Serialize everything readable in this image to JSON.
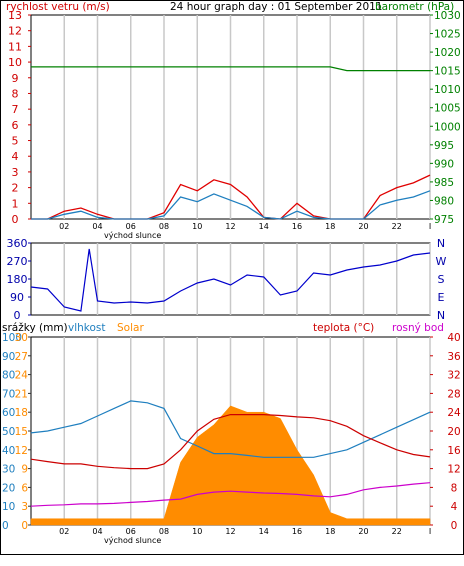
{
  "page": {
    "title": "24 hour graph day : 01 September 2011",
    "sunrise_label": "východ slunce"
  },
  "time_axis": {
    "ticks": [
      "02",
      "04",
      "06",
      "08",
      "10",
      "12",
      "14",
      "16",
      "18",
      "20",
      "22",
      "I"
    ]
  },
  "chart_data": [
    {
      "id": "wind_pressure",
      "type": "line",
      "title": "24 hour graph day : 01 September 2011",
      "left_axis": {
        "label": "rychlost vetru (m/s)",
        "color": "#d00000",
        "ticks": [
          "0",
          "1",
          "2",
          "3",
          "4",
          "5",
          "6",
          "7",
          "8",
          "9",
          "10",
          "11",
          "12",
          "13"
        ],
        "range": [
          0,
          13
        ]
      },
      "right_axis": {
        "label": "barometr (hPa)",
        "color": "#008000",
        "ticks": [
          "975",
          "980",
          "985",
          "990",
          "995",
          "1000",
          "1005",
          "1010",
          "1015",
          "1020",
          "1025",
          "1030"
        ],
        "range": [
          975,
          1030
        ]
      },
      "x": [
        0,
        1,
        2,
        3,
        4,
        5,
        6,
        7,
        8,
        9,
        10,
        11,
        12,
        13,
        14,
        15,
        16,
        17,
        18,
        19,
        20,
        21,
        22,
        23,
        24
      ],
      "series": [
        {
          "axis": "right",
          "color": "#008000",
          "values": [
            1016,
            1016,
            1016,
            1016,
            1016,
            1016,
            1016,
            1016,
            1016,
            1016,
            1016,
            1016,
            1016,
            1016,
            1016,
            1016,
            1016,
            1016,
            1016,
            1015,
            1015,
            1015,
            1015,
            1015,
            1015
          ]
        },
        {
          "axis": "left",
          "color": "#e00000",
          "values": [
            0,
            0,
            0.5,
            0.7,
            0.3,
            0,
            0,
            0,
            0.4,
            2.2,
            1.8,
            2.5,
            2.2,
            1.4,
            0.1,
            0,
            1,
            0.2,
            0,
            0,
            0,
            1.5,
            2,
            2.3,
            2.8
          ]
        },
        {
          "axis": "left",
          "color": "#1f7fbf",
          "values": [
            0,
            0,
            0.3,
            0.5,
            0.1,
            0,
            0,
            0,
            0.2,
            1.4,
            1.1,
            1.6,
            1.2,
            0.8,
            0.1,
            0,
            0.5,
            0.1,
            0,
            0,
            0,
            0.9,
            1.2,
            1.4,
            1.8
          ]
        }
      ]
    },
    {
      "id": "wind_direction",
      "type": "line",
      "left_axis": {
        "ticks": [
          "0",
          "90",
          "180",
          "270",
          "360"
        ],
        "range": [
          0,
          360
        ]
      },
      "right_axis": {
        "ticks": [
          "N",
          "E",
          "S",
          "W",
          "N"
        ]
      },
      "x": [
        0,
        1,
        2,
        3,
        3.5,
        4,
        5,
        6,
        7,
        8,
        9,
        10,
        11,
        12,
        13,
        14,
        15,
        16,
        17,
        18,
        19,
        20,
        21,
        22,
        23,
        24
      ],
      "series": [
        {
          "color": "#0000cc",
          "values": [
            140,
            130,
            40,
            20,
            330,
            70,
            60,
            65,
            60,
            70,
            120,
            160,
            180,
            150,
            200,
            190,
            100,
            120,
            210,
            200,
            225,
            240,
            250,
            270,
            300,
            310
          ]
        }
      ]
    },
    {
      "id": "rain_humidity_solar_temp",
      "type": "area",
      "header_labels": [
        {
          "text": "srážky (mm)",
          "color": "#000000"
        },
        {
          "text": "vlhkost",
          "color": "#1f7fbf"
        },
        {
          "text": "Solar",
          "color": "#ff8c00"
        },
        {
          "text": "teplota (°C)",
          "color": "#cc0000"
        },
        {
          "text": "rosný bod",
          "color": "#cc00cc"
        }
      ],
      "left_axes": [
        {
          "color": "#1f7fbf",
          "ticks": [
            "0",
            "10",
            "20",
            "30",
            "40",
            "50",
            "60",
            "70",
            "80",
            "90",
            "100"
          ],
          "range": [
            0,
            100
          ]
        },
        {
          "color": "#ff8c00",
          "ticks": [
            "0",
            "3",
            "6",
            "9",
            "12",
            "15",
            "18",
            "21",
            "24",
            "27",
            "30"
          ],
          "range": [
            0,
            30
          ]
        }
      ],
      "right_axis": {
        "color": "#cc0000",
        "ticks": [
          "0",
          "4",
          "8",
          "12",
          "16",
          "20",
          "24",
          "28",
          "32",
          "36",
          "40"
        ],
        "range": [
          0,
          40
        ]
      },
      "x": [
        0,
        1,
        2,
        3,
        4,
        5,
        6,
        7,
        8,
        9,
        10,
        11,
        12,
        13,
        14,
        15,
        16,
        17,
        18,
        19,
        20,
        21,
        22,
        23,
        24
      ],
      "series": [
        {
          "name": "vlhkost",
          "axis": "humidity",
          "color": "#1f7fbf",
          "values": [
            49,
            50,
            52,
            54,
            58,
            62,
            66,
            65,
            62,
            46,
            42,
            38,
            38,
            37,
            36,
            36,
            36,
            36,
            38,
            40,
            44,
            48,
            52,
            56,
            60
          ]
        },
        {
          "name": "Solar",
          "axis": "solar",
          "color": "#ff8c00",
          "values": [
            1,
            1,
            1,
            1,
            1,
            1,
            1,
            1,
            1,
            10,
            14,
            16,
            19,
            18,
            18,
            17,
            12,
            8,
            2,
            1,
            1,
            1,
            1,
            1,
            1
          ]
        },
        {
          "name": "teplota (°C)",
          "axis": "temp",
          "color": "#cc0000",
          "values": [
            14,
            13.5,
            13,
            13,
            12.5,
            12.2,
            12,
            12,
            13,
            16,
            20,
            22.5,
            23.5,
            23.5,
            23.5,
            23.3,
            23,
            22.8,
            22.2,
            21,
            19,
            17.5,
            16,
            15,
            14.5
          ]
        },
        {
          "name": "rosný bod",
          "axis": "temp",
          "color": "#cc00cc",
          "values": [
            4,
            4.2,
            4.3,
            4.5,
            4.5,
            4.6,
            4.8,
            5,
            5.3,
            5.5,
            6.5,
            7,
            7.2,
            7,
            6.8,
            6.7,
            6.5,
            6.2,
            6,
            6.5,
            7.5,
            8,
            8.3,
            8.7,
            9
          ]
        }
      ]
    }
  ]
}
